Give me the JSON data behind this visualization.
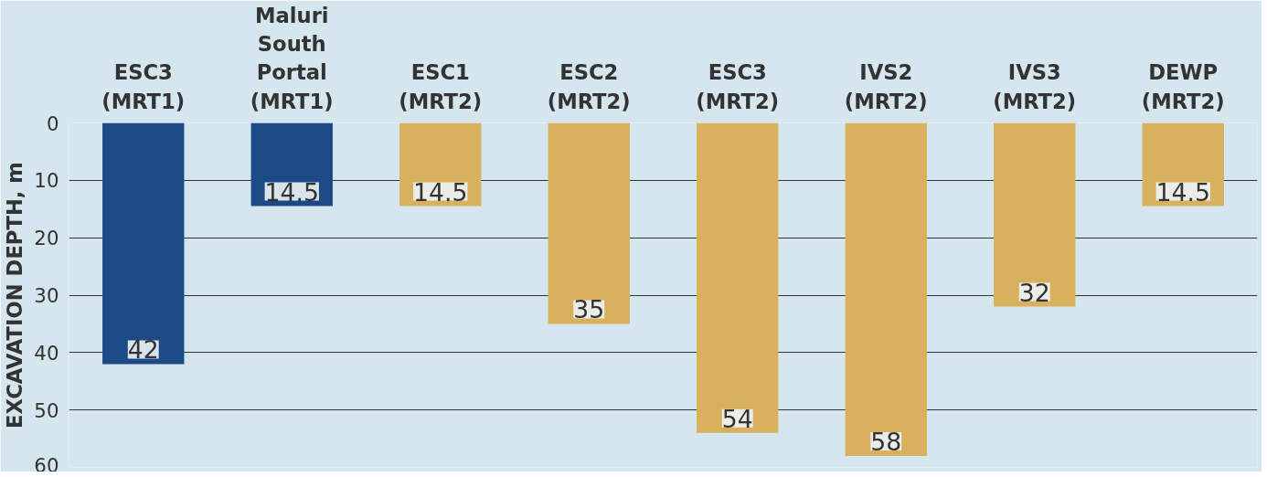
{
  "chart_data": {
    "type": "bar",
    "ylabel": "EXCAVATION DEPTH, m",
    "categories": [
      "ESC3\n(MRT1)",
      "Maluri\nSouth\nPortal\n(MRT1)",
      "ESC1\n(MRT2)",
      "ESC2\n(MRT2)",
      "ESC3\n(MRT2)",
      "IVS2\n(MRT2)",
      "IVS3\n(MRT2)",
      "DEWP\n(MRT2)"
    ],
    "values": [
      42,
      14.5,
      14.5,
      35,
      54,
      58,
      32,
      14.5
    ],
    "colors": [
      "#1b4a86",
      "#1b4a86",
      "#d9b15e",
      "#d9b15e",
      "#d9b15e",
      "#d9b15e",
      "#d9b15e",
      "#d9b15e"
    ],
    "data_labels": true,
    "ylim": [
      60,
      0
    ],
    "yticks": [
      0,
      10,
      20,
      30,
      40,
      50,
      60
    ],
    "grid": "y"
  }
}
